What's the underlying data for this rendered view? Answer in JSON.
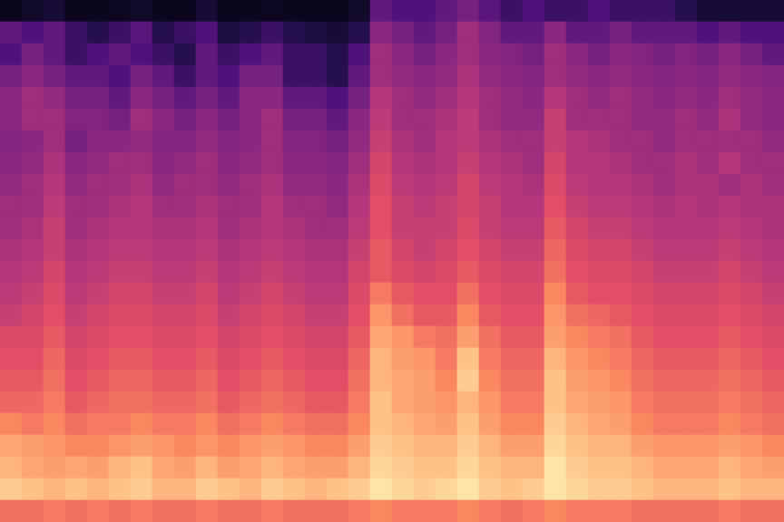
{
  "chart_data": {
    "type": "heatmap",
    "grid": false,
    "tick_labels": false,
    "cells": [
      [
        0.05,
        0.08,
        0.1,
        0.05,
        0.05,
        0.06,
        0.08,
        0.05,
        0.05,
        0.1,
        0.05,
        0.05,
        0.06,
        0.05,
        0.05,
        0.05,
        0.08,
        0.3,
        0.25,
        0.25,
        0.3,
        0.35,
        0.28,
        0.2,
        0.25,
        0.2,
        0.2,
        0.25,
        0.2,
        0.2,
        0.2,
        0.15,
        0.1,
        0.1,
        0.1,
        0.1
      ],
      [
        0.3,
        0.25,
        0.3,
        0.2,
        0.15,
        0.2,
        0.28,
        0.15,
        0.2,
        0.25,
        0.12,
        0.15,
        0.2,
        0.15,
        0.12,
        0.1,
        0.15,
        0.4,
        0.35,
        0.3,
        0.35,
        0.45,
        0.38,
        0.3,
        0.3,
        0.4,
        0.3,
        0.3,
        0.35,
        0.3,
        0.3,
        0.3,
        0.25,
        0.3,
        0.25,
        0.25
      ],
      [
        0.25,
        0.35,
        0.3,
        0.2,
        0.25,
        0.3,
        0.25,
        0.2,
        0.15,
        0.3,
        0.2,
        0.25,
        0.3,
        0.2,
        0.2,
        0.15,
        0.25,
        0.45,
        0.4,
        0.35,
        0.4,
        0.45,
        0.4,
        0.38,
        0.35,
        0.45,
        0.4,
        0.35,
        0.4,
        0.38,
        0.35,
        0.38,
        0.35,
        0.4,
        0.35,
        0.3
      ],
      [
        0.35,
        0.4,
        0.35,
        0.3,
        0.3,
        0.25,
        0.35,
        0.3,
        0.2,
        0.3,
        0.25,
        0.35,
        0.35,
        0.2,
        0.2,
        0.15,
        0.3,
        0.45,
        0.42,
        0.4,
        0.42,
        0.48,
        0.42,
        0.4,
        0.38,
        0.45,
        0.42,
        0.4,
        0.42,
        0.4,
        0.38,
        0.4,
        0.38,
        0.42,
        0.4,
        0.38
      ],
      [
        0.4,
        0.45,
        0.42,
        0.35,
        0.35,
        0.3,
        0.4,
        0.35,
        0.3,
        0.35,
        0.3,
        0.4,
        0.4,
        0.3,
        0.3,
        0.25,
        0.35,
        0.5,
        0.45,
        0.42,
        0.45,
        0.5,
        0.45,
        0.42,
        0.4,
        0.5,
        0.45,
        0.42,
        0.45,
        0.42,
        0.4,
        0.42,
        0.4,
        0.45,
        0.42,
        0.4
      ],
      [
        0.4,
        0.45,
        0.45,
        0.38,
        0.38,
        0.35,
        0.45,
        0.4,
        0.35,
        0.4,
        0.35,
        0.4,
        0.45,
        0.35,
        0.35,
        0.3,
        0.4,
        0.52,
        0.45,
        0.45,
        0.48,
        0.52,
        0.45,
        0.42,
        0.42,
        0.55,
        0.45,
        0.45,
        0.45,
        0.42,
        0.42,
        0.45,
        0.42,
        0.48,
        0.42,
        0.4
      ],
      [
        0.38,
        0.4,
        0.45,
        0.35,
        0.4,
        0.4,
        0.42,
        0.38,
        0.38,
        0.42,
        0.38,
        0.4,
        0.45,
        0.38,
        0.38,
        0.35,
        0.42,
        0.55,
        0.48,
        0.45,
        0.5,
        0.52,
        0.48,
        0.45,
        0.45,
        0.55,
        0.5,
        0.48,
        0.45,
        0.45,
        0.42,
        0.45,
        0.45,
        0.45,
        0.45,
        0.42
      ],
      [
        0.4,
        0.42,
        0.48,
        0.4,
        0.42,
        0.45,
        0.45,
        0.4,
        0.42,
        0.45,
        0.4,
        0.42,
        0.45,
        0.4,
        0.4,
        0.38,
        0.45,
        0.58,
        0.5,
        0.48,
        0.5,
        0.55,
        0.5,
        0.48,
        0.45,
        0.58,
        0.5,
        0.5,
        0.48,
        0.45,
        0.45,
        0.48,
        0.45,
        0.5,
        0.45,
        0.45
      ],
      [
        0.42,
        0.45,
        0.5,
        0.42,
        0.45,
        0.45,
        0.48,
        0.42,
        0.45,
        0.45,
        0.42,
        0.45,
        0.48,
        0.42,
        0.42,
        0.4,
        0.48,
        0.6,
        0.52,
        0.5,
        0.52,
        0.58,
        0.52,
        0.5,
        0.48,
        0.6,
        0.52,
        0.5,
        0.5,
        0.48,
        0.45,
        0.48,
        0.48,
        0.45,
        0.48,
        0.45
      ],
      [
        0.45,
        0.45,
        0.52,
        0.45,
        0.45,
        0.48,
        0.5,
        0.45,
        0.45,
        0.48,
        0.45,
        0.45,
        0.5,
        0.45,
        0.45,
        0.42,
        0.5,
        0.62,
        0.55,
        0.52,
        0.55,
        0.58,
        0.55,
        0.5,
        0.5,
        0.62,
        0.55,
        0.52,
        0.52,
        0.5,
        0.48,
        0.5,
        0.48,
        0.5,
        0.48,
        0.48
      ],
      [
        0.45,
        0.48,
        0.55,
        0.45,
        0.48,
        0.5,
        0.5,
        0.48,
        0.48,
        0.5,
        0.45,
        0.48,
        0.5,
        0.48,
        0.45,
        0.45,
        0.52,
        0.62,
        0.55,
        0.55,
        0.55,
        0.6,
        0.55,
        0.52,
        0.52,
        0.65,
        0.58,
        0.55,
        0.55,
        0.52,
        0.5,
        0.5,
        0.5,
        0.52,
        0.5,
        0.48
      ],
      [
        0.48,
        0.5,
        0.55,
        0.48,
        0.5,
        0.52,
        0.52,
        0.5,
        0.5,
        0.52,
        0.48,
        0.5,
        0.52,
        0.5,
        0.48,
        0.48,
        0.55,
        0.65,
        0.58,
        0.55,
        0.58,
        0.62,
        0.58,
        0.55,
        0.55,
        0.68,
        0.6,
        0.58,
        0.58,
        0.55,
        0.52,
        0.52,
        0.52,
        0.55,
        0.52,
        0.5
      ],
      [
        0.5,
        0.52,
        0.58,
        0.5,
        0.52,
        0.55,
        0.55,
        0.52,
        0.52,
        0.55,
        0.5,
        0.52,
        0.55,
        0.52,
        0.5,
        0.5,
        0.58,
        0.65,
        0.6,
        0.58,
        0.6,
        0.65,
        0.6,
        0.58,
        0.58,
        0.7,
        0.62,
        0.6,
        0.6,
        0.58,
        0.55,
        0.55,
        0.55,
        0.58,
        0.55,
        0.52
      ],
      [
        0.52,
        0.55,
        0.6,
        0.52,
        0.55,
        0.58,
        0.58,
        0.55,
        0.55,
        0.58,
        0.52,
        0.55,
        0.58,
        0.55,
        0.52,
        0.52,
        0.6,
        0.72,
        0.65,
        0.62,
        0.62,
        0.7,
        0.62,
        0.6,
        0.6,
        0.75,
        0.65,
        0.62,
        0.62,
        0.6,
        0.58,
        0.58,
        0.58,
        0.6,
        0.58,
        0.55
      ],
      [
        0.55,
        0.58,
        0.62,
        0.55,
        0.58,
        0.6,
        0.6,
        0.58,
        0.58,
        0.6,
        0.55,
        0.58,
        0.6,
        0.58,
        0.55,
        0.55,
        0.62,
        0.78,
        0.7,
        0.65,
        0.65,
        0.75,
        0.65,
        0.62,
        0.62,
        0.78,
        0.7,
        0.68,
        0.65,
        0.62,
        0.6,
        0.6,
        0.6,
        0.62,
        0.6,
        0.58
      ],
      [
        0.6,
        0.6,
        0.65,
        0.58,
        0.6,
        0.62,
        0.62,
        0.6,
        0.6,
        0.62,
        0.58,
        0.6,
        0.62,
        0.6,
        0.58,
        0.58,
        0.65,
        0.82,
        0.78,
        0.72,
        0.7,
        0.8,
        0.7,
        0.65,
        0.65,
        0.8,
        0.75,
        0.72,
        0.7,
        0.65,
        0.62,
        0.62,
        0.62,
        0.65,
        0.62,
        0.6
      ],
      [
        0.62,
        0.62,
        0.68,
        0.6,
        0.62,
        0.65,
        0.65,
        0.62,
        0.62,
        0.65,
        0.6,
        0.62,
        0.65,
        0.62,
        0.6,
        0.6,
        0.68,
        0.85,
        0.8,
        0.78,
        0.72,
        0.88,
        0.72,
        0.68,
        0.68,
        0.85,
        0.78,
        0.75,
        0.72,
        0.68,
        0.65,
        0.65,
        0.65,
        0.68,
        0.65,
        0.62
      ],
      [
        0.65,
        0.65,
        0.7,
        0.62,
        0.65,
        0.68,
        0.68,
        0.65,
        0.65,
        0.68,
        0.62,
        0.65,
        0.68,
        0.65,
        0.62,
        0.62,
        0.7,
        0.85,
        0.82,
        0.8,
        0.75,
        0.9,
        0.75,
        0.7,
        0.7,
        0.88,
        0.8,
        0.78,
        0.75,
        0.7,
        0.68,
        0.68,
        0.68,
        0.7,
        0.68,
        0.65
      ],
      [
        0.68,
        0.68,
        0.72,
        0.65,
        0.68,
        0.7,
        0.7,
        0.68,
        0.68,
        0.7,
        0.65,
        0.68,
        0.7,
        0.68,
        0.65,
        0.65,
        0.72,
        0.88,
        0.82,
        0.8,
        0.78,
        0.85,
        0.78,
        0.72,
        0.72,
        0.88,
        0.82,
        0.8,
        0.78,
        0.72,
        0.7,
        0.7,
        0.7,
        0.72,
        0.7,
        0.68
      ],
      [
        0.75,
        0.72,
        0.75,
        0.7,
        0.72,
        0.72,
        0.75,
        0.72,
        0.72,
        0.75,
        0.7,
        0.72,
        0.75,
        0.72,
        0.7,
        0.7,
        0.75,
        0.88,
        0.85,
        0.82,
        0.8,
        0.88,
        0.8,
        0.75,
        0.75,
        0.9,
        0.85,
        0.82,
        0.8,
        0.75,
        0.72,
        0.72,
        0.72,
        0.75,
        0.72,
        0.7
      ],
      [
        0.82,
        0.8,
        0.78,
        0.75,
        0.75,
        0.78,
        0.8,
        0.78,
        0.75,
        0.78,
        0.75,
        0.78,
        0.8,
        0.78,
        0.75,
        0.75,
        0.8,
        0.9,
        0.88,
        0.85,
        0.85,
        0.9,
        0.85,
        0.8,
        0.8,
        0.92,
        0.88,
        0.85,
        0.85,
        0.8,
        0.78,
        0.78,
        0.78,
        0.8,
        0.78,
        0.75
      ],
      [
        0.85,
        0.82,
        0.8,
        0.82,
        0.8,
        0.85,
        0.88,
        0.82,
        0.8,
        0.85,
        0.8,
        0.82,
        0.85,
        0.82,
        0.8,
        0.8,
        0.85,
        0.92,
        0.9,
        0.88,
        0.88,
        0.92,
        0.88,
        0.85,
        0.85,
        0.95,
        0.9,
        0.88,
        0.88,
        0.85,
        0.82,
        0.82,
        0.82,
        0.85,
        0.82,
        0.8
      ],
      [
        0.9,
        0.88,
        0.85,
        0.88,
        0.85,
        0.88,
        0.9,
        0.85,
        0.85,
        0.9,
        0.88,
        0.85,
        0.9,
        0.88,
        0.85,
        0.88,
        0.9,
        0.95,
        0.92,
        0.9,
        0.92,
        0.95,
        0.9,
        0.88,
        0.9,
        0.95,
        0.92,
        0.9,
        0.9,
        0.88,
        0.85,
        0.85,
        0.85,
        0.88,
        0.85,
        0.85
      ],
      [
        0.7,
        0.7,
        0.72,
        0.7,
        0.72,
        0.7,
        0.72,
        0.7,
        0.7,
        0.72,
        0.7,
        0.7,
        0.72,
        0.7,
        0.7,
        0.7,
        0.72,
        0.75,
        0.72,
        0.72,
        0.72,
        0.75,
        0.72,
        0.7,
        0.72,
        0.75,
        0.72,
        0.72,
        0.72,
        0.7,
        0.7,
        0.7,
        0.7,
        0.72,
        0.7,
        0.7
      ]
    ]
  }
}
